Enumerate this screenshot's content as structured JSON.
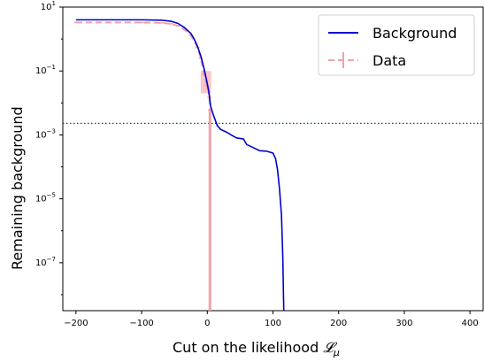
{
  "chart_data": {
    "type": "line",
    "title": "",
    "xlabel": "Cut on the likelihood",
    "xlabel_symbol": "𝓛",
    "xlabel_subscript": "μ",
    "ylabel": "Remaining background",
    "xlim": [
      -220,
      420
    ],
    "ylim_log10": [
      -8.5,
      1
    ],
    "yscale": "log",
    "grid": false,
    "legend_position": "upper right",
    "x_ticks": [
      -200,
      -100,
      0,
      100,
      200,
      300,
      400
    ],
    "x_tick_labels": [
      "−200",
      "−100",
      "0",
      "100",
      "200",
      "300",
      "400"
    ],
    "y_ticks": [
      {
        "exp": 1,
        "base": "10",
        "power": "1"
      },
      {
        "exp": -1,
        "base": "10",
        "power": "−1"
      },
      {
        "exp": -3,
        "base": "10",
        "power": "−3"
      },
      {
        "exp": -5,
        "base": "10",
        "power": "−5"
      },
      {
        "exp": -7,
        "base": "10",
        "power": "−7"
      }
    ],
    "threshold_value": 0.0023,
    "series": [
      {
        "name": "Background",
        "color": "#0000cc",
        "style": "solid",
        "points": [
          [
            -200,
            4.0
          ],
          [
            -150,
            4.0
          ],
          [
            -100,
            4.0
          ],
          [
            -70,
            3.9
          ],
          [
            -55,
            3.6
          ],
          [
            -45,
            3.1
          ],
          [
            -35,
            2.3
          ],
          [
            -25,
            1.5
          ],
          [
            -20,
            1.0
          ],
          [
            -15,
            0.6
          ],
          [
            -10,
            0.3
          ],
          [
            -5,
            0.12
          ],
          [
            0,
            0.04
          ],
          [
            3,
            0.018
          ],
          [
            5,
            0.008
          ],
          [
            8,
            0.005
          ],
          [
            10,
            0.0038
          ],
          [
            15,
            0.002
          ],
          [
            20,
            0.0015
          ],
          [
            30,
            0.0012
          ],
          [
            40,
            0.0009
          ],
          [
            45,
            0.0008
          ],
          [
            55,
            0.00075
          ],
          [
            60,
            0.0005
          ],
          [
            70,
            0.0004
          ],
          [
            80,
            0.00032
          ],
          [
            90,
            0.00031
          ],
          [
            100,
            0.00027
          ],
          [
            104,
            0.00018
          ],
          [
            107,
            8e-05
          ],
          [
            110,
            2e-05
          ],
          [
            113,
            3e-06
          ],
          [
            115,
            1.5e-07
          ],
          [
            116,
            1e-08
          ],
          [
            116.5,
            1e-09
          ]
        ]
      },
      {
        "name": "Data",
        "color": "#f4a0a8",
        "style": "dashed",
        "points": [
          [
            -200,
            3.3
          ],
          [
            -150,
            3.3
          ],
          [
            -100,
            3.3
          ],
          [
            -70,
            3.2
          ],
          [
            -55,
            3.0
          ],
          [
            -45,
            2.6
          ],
          [
            -35,
            2.0
          ],
          [
            -25,
            1.3
          ],
          [
            -15,
            0.55
          ],
          [
            -10,
            0.25
          ],
          [
            -5,
            0.08
          ],
          [
            -1,
            0.035
          ],
          [
            1,
            0.03
          ],
          [
            3,
            0.015
          ],
          [
            4,
            0.006
          ]
        ],
        "error_x": 3,
        "error_band_x": [
          -10,
          6
        ],
        "error_band_low": 0.02,
        "error_band_high": 0.1
      }
    ]
  }
}
